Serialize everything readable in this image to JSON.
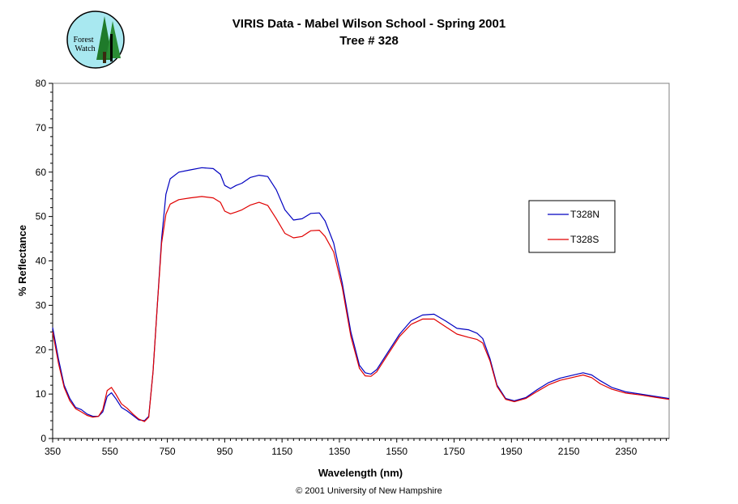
{
  "logo": {
    "line1": "Forest",
    "line2": "Watch"
  },
  "footer": "© 2001 University of New Hampshire",
  "colors": {
    "T328N": "#0000c0",
    "T328S": "#e00000"
  },
  "chart_data": {
    "type": "line",
    "title": "VIRIS Data - Mabel Wilson School - Spring 2001",
    "subtitle": "Tree # 328",
    "xlabel": "Wavelength (nm)",
    "ylabel": "% Reflectance",
    "xlim": [
      350,
      2500
    ],
    "ylim": [
      0,
      80
    ],
    "xticks": [
      350,
      550,
      750,
      950,
      1150,
      1350,
      1550,
      1750,
      1950,
      2150,
      2350
    ],
    "yticks": [
      0,
      10,
      20,
      30,
      40,
      50,
      60,
      70,
      80
    ],
    "legend_position": "right",
    "grid": false,
    "series": [
      {
        "name": "T328N",
        "color": "#0000c0",
        "points": [
          [
            350,
            25
          ],
          [
            370,
            18
          ],
          [
            390,
            12
          ],
          [
            410,
            9
          ],
          [
            430,
            7
          ],
          [
            450,
            6.5
          ],
          [
            470,
            5.5
          ],
          [
            490,
            5
          ],
          [
            510,
            5
          ],
          [
            525,
            6
          ],
          [
            540,
            9.5
          ],
          [
            555,
            10.3
          ],
          [
            570,
            9
          ],
          [
            590,
            7
          ],
          [
            610,
            6.2
          ],
          [
            630,
            5.2
          ],
          [
            650,
            4.2
          ],
          [
            670,
            4
          ],
          [
            685,
            5
          ],
          [
            700,
            15
          ],
          [
            715,
            30
          ],
          [
            730,
            45
          ],
          [
            745,
            55
          ],
          [
            760,
            58.5
          ],
          [
            790,
            60
          ],
          [
            830,
            60.5
          ],
          [
            870,
            61
          ],
          [
            910,
            60.8
          ],
          [
            935,
            59.5
          ],
          [
            950,
            57
          ],
          [
            970,
            56.3
          ],
          [
            990,
            57
          ],
          [
            1010,
            57.5
          ],
          [
            1040,
            58.8
          ],
          [
            1070,
            59.3
          ],
          [
            1100,
            59
          ],
          [
            1130,
            56
          ],
          [
            1160,
            51.5
          ],
          [
            1190,
            49.2
          ],
          [
            1220,
            49.5
          ],
          [
            1250,
            50.7
          ],
          [
            1280,
            50.8
          ],
          [
            1300,
            49
          ],
          [
            1330,
            44
          ],
          [
            1360,
            35
          ],
          [
            1390,
            24
          ],
          [
            1420,
            16.5
          ],
          [
            1440,
            14.8
          ],
          [
            1460,
            14.5
          ],
          [
            1480,
            15.5
          ],
          [
            1520,
            19.5
          ],
          [
            1560,
            23.5
          ],
          [
            1600,
            26.5
          ],
          [
            1640,
            27.8
          ],
          [
            1680,
            28
          ],
          [
            1720,
            26.5
          ],
          [
            1760,
            24.8
          ],
          [
            1800,
            24.5
          ],
          [
            1830,
            23.7
          ],
          [
            1850,
            22.5
          ],
          [
            1875,
            18
          ],
          [
            1900,
            12
          ],
          [
            1930,
            9
          ],
          [
            1960,
            8.5
          ],
          [
            2000,
            9.2
          ],
          [
            2040,
            11
          ],
          [
            2080,
            12.6
          ],
          [
            2120,
            13.6
          ],
          [
            2160,
            14.2
          ],
          [
            2200,
            14.8
          ],
          [
            2230,
            14.3
          ],
          [
            2260,
            13
          ],
          [
            2300,
            11.5
          ],
          [
            2350,
            10.5
          ],
          [
            2400,
            10
          ],
          [
            2450,
            9.5
          ],
          [
            2500,
            9
          ]
        ]
      },
      {
        "name": "T328S",
        "color": "#e00000",
        "points": [
          [
            350,
            24
          ],
          [
            370,
            17
          ],
          [
            390,
            11.5
          ],
          [
            410,
            8.5
          ],
          [
            430,
            6.7
          ],
          [
            450,
            6
          ],
          [
            470,
            5.2
          ],
          [
            490,
            4.8
          ],
          [
            510,
            5
          ],
          [
            525,
            6.5
          ],
          [
            540,
            10.8
          ],
          [
            555,
            11.5
          ],
          [
            570,
            10
          ],
          [
            590,
            7.8
          ],
          [
            610,
            6.8
          ],
          [
            630,
            5.5
          ],
          [
            650,
            4.4
          ],
          [
            670,
            3.8
          ],
          [
            685,
            4.8
          ],
          [
            700,
            15
          ],
          [
            715,
            30
          ],
          [
            730,
            44
          ],
          [
            745,
            50.5
          ],
          [
            760,
            52.8
          ],
          [
            790,
            53.8
          ],
          [
            830,
            54.2
          ],
          [
            870,
            54.5
          ],
          [
            910,
            54.2
          ],
          [
            935,
            53.2
          ],
          [
            950,
            51.2
          ],
          [
            970,
            50.6
          ],
          [
            990,
            51
          ],
          [
            1010,
            51.5
          ],
          [
            1040,
            52.6
          ],
          [
            1070,
            53.2
          ],
          [
            1100,
            52.5
          ],
          [
            1130,
            49.5
          ],
          [
            1160,
            46.2
          ],
          [
            1190,
            45.2
          ],
          [
            1220,
            45.5
          ],
          [
            1250,
            46.8
          ],
          [
            1280,
            46.9
          ],
          [
            1300,
            45.5
          ],
          [
            1330,
            42
          ],
          [
            1360,
            34
          ],
          [
            1390,
            23
          ],
          [
            1420,
            15.8
          ],
          [
            1440,
            14.1
          ],
          [
            1460,
            14
          ],
          [
            1480,
            15
          ],
          [
            1520,
            19
          ],
          [
            1560,
            23
          ],
          [
            1600,
            25.7
          ],
          [
            1640,
            26.9
          ],
          [
            1680,
            26.9
          ],
          [
            1720,
            25.2
          ],
          [
            1760,
            23.5
          ],
          [
            1800,
            22.8
          ],
          [
            1830,
            22.3
          ],
          [
            1850,
            21.5
          ],
          [
            1875,
            17.5
          ],
          [
            1900,
            11.7
          ],
          [
            1930,
            8.8
          ],
          [
            1960,
            8.3
          ],
          [
            2000,
            9
          ],
          [
            2040,
            10.6
          ],
          [
            2080,
            12.1
          ],
          [
            2120,
            13.1
          ],
          [
            2160,
            13.7
          ],
          [
            2200,
            14.3
          ],
          [
            2230,
            13.7
          ],
          [
            2260,
            12.3
          ],
          [
            2300,
            11.1
          ],
          [
            2350,
            10.2
          ],
          [
            2400,
            9.8
          ],
          [
            2450,
            9.3
          ],
          [
            2500,
            8.8
          ]
        ]
      }
    ]
  }
}
